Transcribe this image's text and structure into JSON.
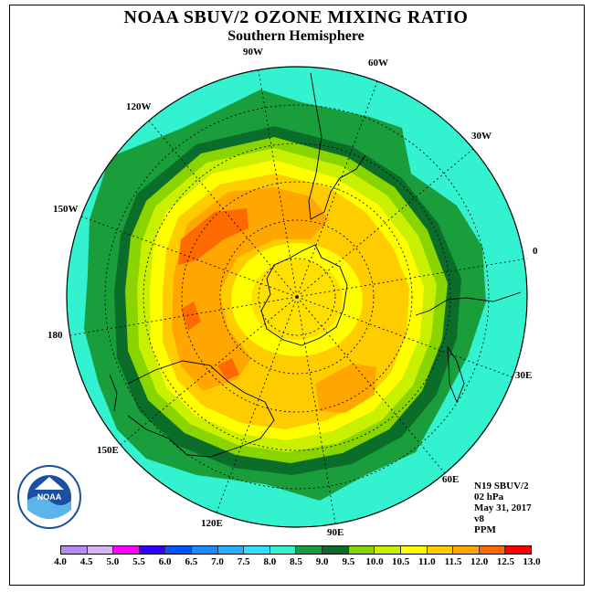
{
  "header": {
    "title": "NOAA SBUV/2 OZONE MIXING RATIO",
    "subtitle": "Southern Hemisphere"
  },
  "info": {
    "instrument": "N19 SBUV/2",
    "pressure": "02 hPa",
    "date": "May 31, 2017",
    "version": "v8",
    "units": "PPM"
  },
  "logo": {
    "text": "NOAA"
  },
  "map": {
    "projection": "south-polar-stereographic",
    "longitude_labels": [
      {
        "text": "0",
        "lon": 0
      },
      {
        "text": "30E",
        "lon": 30
      },
      {
        "text": "60E",
        "lon": 60
      },
      {
        "text": "90E",
        "lon": 90
      },
      {
        "text": "120E",
        "lon": 120
      },
      {
        "text": "150E",
        "lon": 150
      },
      {
        "text": "180",
        "lon": 180
      },
      {
        "text": "150W",
        "lon": -150
      },
      {
        "text": "120W",
        "lon": -120
      },
      {
        "text": "90W",
        "lon": -90
      },
      {
        "text": "60W",
        "lon": -60
      },
      {
        "text": "30W",
        "lon": -30
      }
    ]
  },
  "colorbar": {
    "ticks": [
      "4.0",
      "4.5",
      "5.0",
      "5.5",
      "6.0",
      "6.5",
      "7.0",
      "7.5",
      "8.0",
      "8.5",
      "9.0",
      "9.5",
      "10.0",
      "10.5",
      "11.0",
      "11.5",
      "12.0",
      "12.5",
      "13.0"
    ],
    "colors": [
      "#b889f2",
      "#d9b3f2",
      "#ff00ff",
      "#3300ff",
      "#0055ff",
      "#1a8cff",
      "#26b0ff",
      "#33ddff",
      "#33f2d0",
      "#1a9e3c",
      "#0a6e2a",
      "#8ad400",
      "#c8f000",
      "#ffff00",
      "#ffcc00",
      "#ffa600",
      "#ff6a00",
      "#ff0000",
      "#7a4a2a"
    ]
  }
}
